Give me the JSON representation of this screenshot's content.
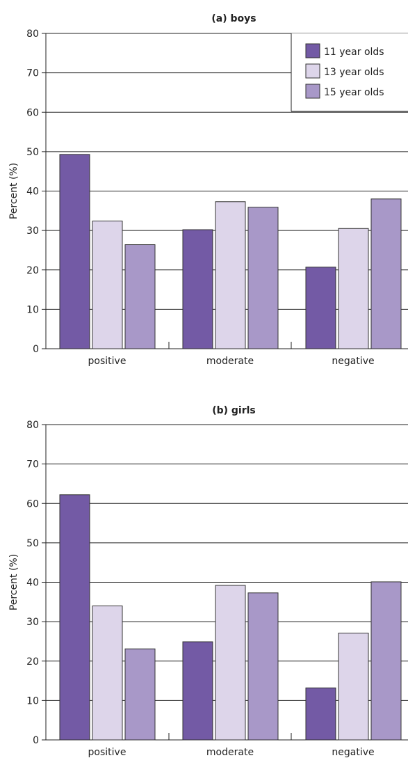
{
  "chart_data": [
    {
      "type": "bar",
      "title": "(a) boys",
      "ylabel": "Percent (%)",
      "xlabel": "",
      "ylim": [
        0,
        80
      ],
      "yticks": [
        0,
        10,
        20,
        30,
        40,
        50,
        60,
        70,
        80
      ],
      "grid": true,
      "legend": "top-right",
      "categories": [
        "positive",
        "moderate",
        "negative"
      ],
      "series": [
        {
          "name": "11 year olds",
          "color": "#735aa5",
          "values": [
            49.3,
            30.2,
            20.7
          ]
        },
        {
          "name": "13 year olds",
          "color": "#ddd5ea",
          "values": [
            32.4,
            37.3,
            30.5
          ]
        },
        {
          "name": "15 year olds",
          "color": "#a898c8",
          "values": [
            26.4,
            35.9,
            38.0
          ]
        }
      ]
    },
    {
      "type": "bar",
      "title": "(b) girls",
      "ylabel": "Percent (%)",
      "xlabel": "",
      "ylim": [
        0,
        80
      ],
      "yticks": [
        0,
        10,
        20,
        30,
        40,
        50,
        60,
        70,
        80
      ],
      "grid": true,
      "categories": [
        "positive",
        "moderate",
        "negative"
      ],
      "series": [
        {
          "name": "11 year olds",
          "color": "#735aa5",
          "values": [
            62.2,
            24.9,
            13.2
          ]
        },
        {
          "name": "13 year olds",
          "color": "#ddd5ea",
          "values": [
            34.0,
            39.2,
            27.1
          ]
        },
        {
          "name": "15 year olds",
          "color": "#a898c8",
          "values": [
            23.1,
            37.3,
            40.1
          ]
        }
      ]
    }
  ]
}
